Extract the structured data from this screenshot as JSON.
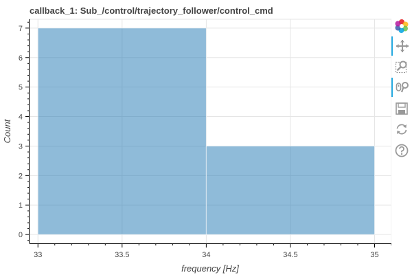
{
  "chart_data": {
    "type": "bar",
    "title": "callback_1: Sub_/control/trajectory_follower/control_cmd",
    "xlabel": "frequency [Hz]",
    "ylabel": "Count",
    "bins": [
      {
        "x_start": 33,
        "x_end": 34,
        "value": 7
      },
      {
        "x_start": 34,
        "x_end": 35,
        "value": 3
      }
    ],
    "xlim": [
      32.95,
      35.1
    ],
    "ylim": [
      -0.3,
      7.3
    ],
    "x_ticks": [
      {
        "value": 33,
        "label": "33"
      },
      {
        "value": 33.5,
        "label": "33.5"
      },
      {
        "value": 34,
        "label": "34"
      },
      {
        "value": 34.5,
        "label": "34.5"
      },
      {
        "value": 35,
        "label": "35"
      }
    ],
    "y_ticks": [
      {
        "value": 0,
        "label": "0"
      },
      {
        "value": 1,
        "label": "1"
      },
      {
        "value": 2,
        "label": "2"
      },
      {
        "value": 3,
        "label": "3"
      },
      {
        "value": 4,
        "label": "4"
      },
      {
        "value": 5,
        "label": "5"
      },
      {
        "value": 6,
        "label": "6"
      },
      {
        "value": 7,
        "label": "7"
      }
    ],
    "grid": true,
    "legend": "none",
    "bar_color": "#1f77b4",
    "bar_opacity": 0.5
  },
  "toolbar": {
    "tools": [
      {
        "name": "bokeh-logo",
        "icon": "bokeh-logo-icon",
        "active": false,
        "interactable": false
      },
      {
        "name": "pan-tool",
        "icon": "pan-icon",
        "active": true,
        "interactable": true
      },
      {
        "name": "box-zoom-tool",
        "icon": "box-zoom-icon",
        "active": false,
        "interactable": true
      },
      {
        "name": "wheel-zoom-tool",
        "icon": "wheel-zoom-icon",
        "active": true,
        "interactable": true
      },
      {
        "name": "save-tool",
        "icon": "save-icon",
        "active": false,
        "interactable": true
      },
      {
        "name": "reset-tool",
        "icon": "reset-icon",
        "active": false,
        "interactable": true
      },
      {
        "name": "help-tool",
        "icon": "help-icon",
        "active": false,
        "interactable": true
      }
    ]
  }
}
